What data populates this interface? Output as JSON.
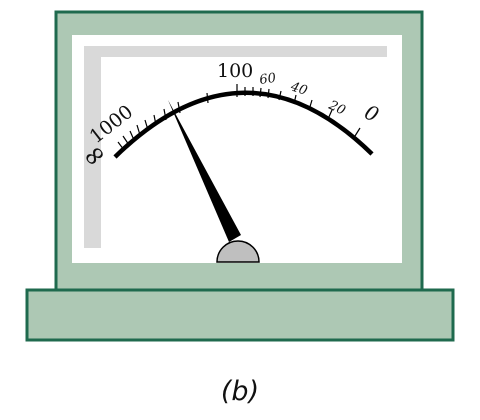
{
  "meter": {
    "scale_labels": {
      "infinity": "∞",
      "thousand": "1000",
      "hundred": "100",
      "sixty": "60",
      "forty": "40",
      "twenty": "20",
      "zero": "0"
    },
    "caption": "(b)"
  },
  "colors": {
    "housing_fill": "#adc8b4",
    "housing_stroke": "#1f6a4e",
    "face": "#ffffff",
    "shadow": "#d9d9d9",
    "needle": "#000000",
    "pivot": "#bfbfbf"
  }
}
